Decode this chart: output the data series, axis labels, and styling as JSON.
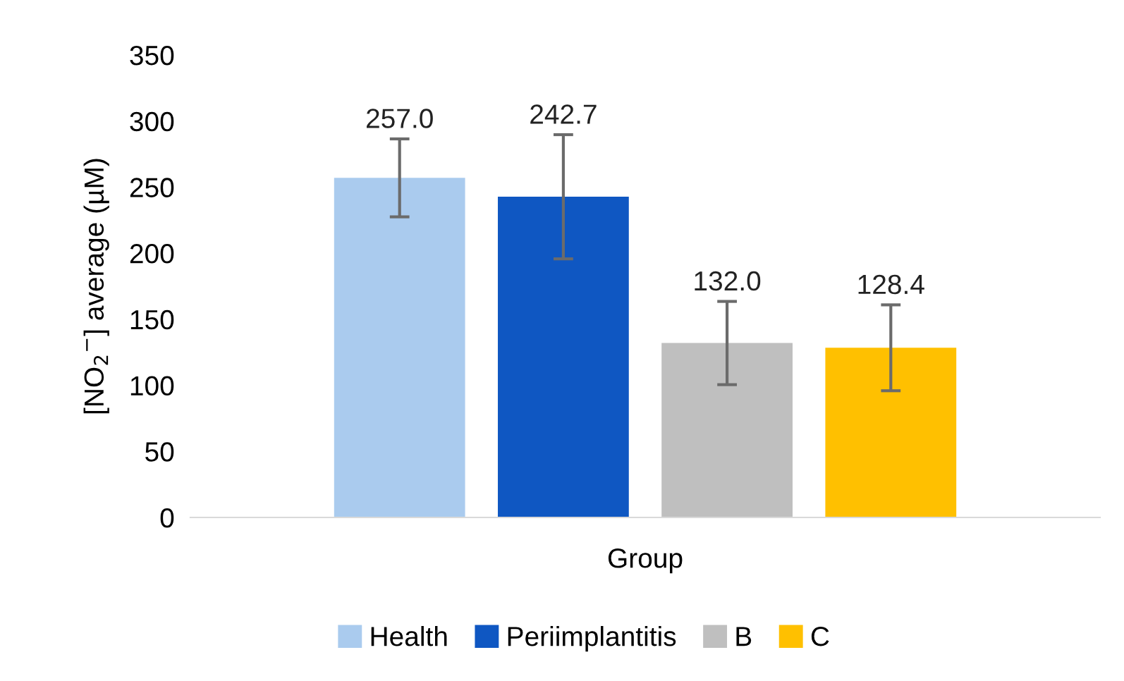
{
  "chart_data": {
    "type": "bar",
    "xlabel": "Group",
    "ylabel": "[NO$_{2}$$^{−}$] average (µM)",
    "categories": [
      null
    ],
    "ylim": [
      0,
      350
    ],
    "yticks": [
      0,
      50,
      100,
      150,
      200,
      250,
      300,
      350
    ],
    "grid": false,
    "legend": "bottom",
    "series": [
      {
        "name": "Health",
        "color": "#aacbee",
        "values": [
          257.0
        ],
        "errors": [
          29.5
        ],
        "value_labels": [
          "257.0"
        ]
      },
      {
        "name": "Periimplantitis",
        "color": "#0f57c2",
        "values": [
          242.7
        ],
        "errors": [
          47
        ],
        "value_labels": [
          "242.7"
        ]
      },
      {
        "name": "B",
        "color": "#bfbfbf",
        "values": [
          132.0
        ],
        "errors": [
          31.5
        ],
        "value_labels": [
          "132.0"
        ]
      },
      {
        "name": "C",
        "color": "#ffc000",
        "values": [
          128.4
        ],
        "errors": [
          32.5
        ],
        "value_labels": [
          "128.4"
        ]
      }
    ]
  }
}
